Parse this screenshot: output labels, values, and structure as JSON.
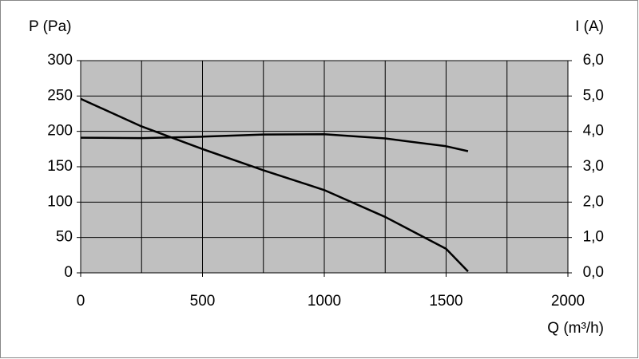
{
  "chart_data": {
    "type": "line",
    "y_label": "P (Pa)",
    "y2_label": "I (A)",
    "x_label": "Q (m³/h)",
    "x": [
      0,
      250,
      500,
      750,
      1000,
      1250,
      1500,
      1590
    ],
    "series": [
      {
        "color": "#000000",
        "values": [
          246,
          207,
          175,
          145,
          117,
          79,
          34,
          2
        ]
      },
      {
        "color": "#000000",
        "axis": "y2",
        "values": [
          3.82,
          3.81,
          3.85,
          3.91,
          3.92,
          3.8,
          3.58,
          3.44
        ]
      }
    ],
    "xlim": [
      0,
      2000
    ],
    "xticks": [
      0,
      500,
      1000,
      1500,
      2000
    ],
    "ylim": [
      0,
      300
    ],
    "yticks": [
      0,
      50,
      100,
      150,
      200,
      250,
      300
    ],
    "y2lim": [
      0,
      6
    ],
    "y2ticks": [
      {
        "value": 0,
        "label": "0,0"
      },
      {
        "value": 1,
        "label": "1,0"
      },
      {
        "value": 2,
        "label": "2,0"
      },
      {
        "value": 3,
        "label": "3,0"
      },
      {
        "value": 4,
        "label": "4,0"
      },
      {
        "value": 5,
        "label": "5,0"
      },
      {
        "value": 6,
        "label": "6,0"
      }
    ],
    "xgrid_step": 250,
    "grid": true,
    "plot_background": "#c0c0c0"
  }
}
